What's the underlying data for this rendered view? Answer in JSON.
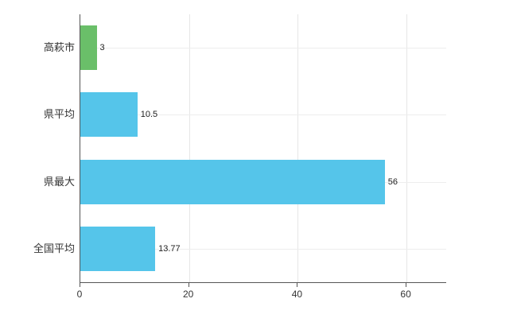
{
  "chart_data": {
    "type": "bar",
    "orientation": "horizontal",
    "categories": [
      "高萩市",
      "県平均",
      "県最大",
      "全国平均"
    ],
    "values": [
      3,
      10.5,
      56,
      13.77
    ],
    "value_labels": [
      "3",
      "10.5",
      "56",
      "13.77"
    ],
    "bar_colors": [
      "#6abf69",
      "#55c5ea",
      "#55c5ea",
      "#55c5ea"
    ],
    "title": "",
    "xlabel": "",
    "ylabel": "",
    "xlim": [
      0,
      67.3
    ],
    "xticks": [
      0,
      20,
      40,
      60
    ],
    "xtick_labels": [
      "0",
      "20",
      "40",
      "60"
    ],
    "grid": true,
    "legend": "none",
    "colors": {
      "axis": "#555555",
      "grid_vertical": "#e6e6e6",
      "grid_horizontal": "#ededed",
      "text": "#333333",
      "value_text": "#222222",
      "background": "#ffffff"
    }
  }
}
